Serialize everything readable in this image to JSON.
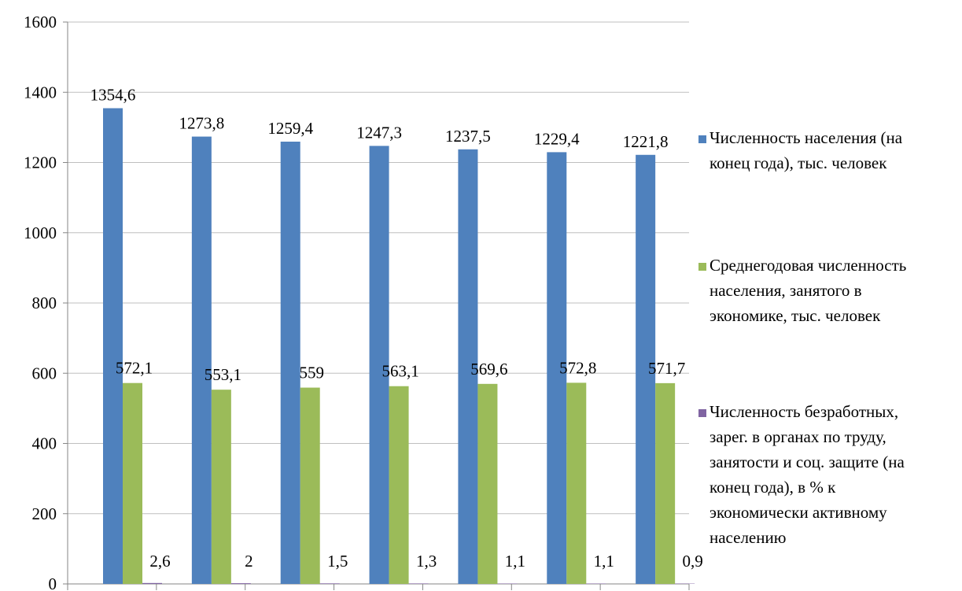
{
  "chart_data": {
    "type": "bar",
    "title": "",
    "xlabel": "",
    "ylabel": "",
    "ylim": [
      0,
      1600
    ],
    "yticks": [
      0,
      200,
      400,
      600,
      800,
      1000,
      1200,
      1400,
      1600
    ],
    "grid": true,
    "legend_position": "right",
    "categories": [
      "",
      "",
      "",
      "",
      "",
      "",
      ""
    ],
    "series": [
      {
        "name": "Численность населения (на конец года), тыс. человек",
        "legend_lines": [
          "Численность населения (на",
          "конец года), тыс. человек"
        ],
        "color": "#4F81BD",
        "values": [
          1354.6,
          1273.8,
          1259.4,
          1247.3,
          1237.5,
          1229.4,
          1221.8
        ],
        "labels": [
          "1354,6",
          "1273,8",
          "1259,4",
          "1247,3",
          "1237,5",
          "1229,4",
          "1221,8"
        ]
      },
      {
        "name": "Среднегодовая численность населения, занятого в экономике, тыс. человек",
        "legend_lines": [
          "Среднегодовая численность",
          "населения, занятого в",
          "экономике, тыс. человек"
        ],
        "color": "#9BBB59",
        "values": [
          572.1,
          553.1,
          559,
          563.1,
          569.6,
          572.8,
          571.7
        ],
        "labels": [
          "572,1",
          "553,1",
          "559",
          "563,1",
          "569,6",
          "572,8",
          "571,7"
        ]
      },
      {
        "name": "Численность безработных, зарег. в органах по труду, занятости и соц. защите (на конец года), в % к экономически активному населению",
        "legend_lines": [
          "Численность безработных,",
          "зарег. в органах по труду,",
          "занятости и соц. защите (на",
          "конец года), в % к",
          "экономически активному",
          "населению"
        ],
        "color": "#8064A2",
        "values": [
          2.6,
          2,
          1.5,
          1.3,
          1.1,
          1.1,
          0.9
        ],
        "labels": [
          "2,6",
          "2",
          "1,5",
          "1,3",
          "1,1",
          "1,1",
          "0,9"
        ]
      }
    ]
  }
}
